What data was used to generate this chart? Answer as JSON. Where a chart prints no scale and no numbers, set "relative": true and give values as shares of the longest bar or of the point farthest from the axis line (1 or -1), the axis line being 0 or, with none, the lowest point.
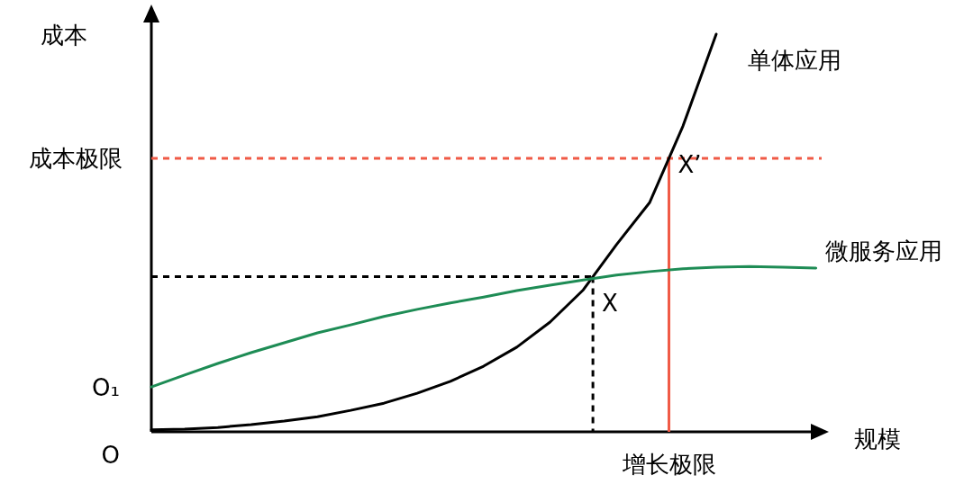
{
  "chart_data": {
    "type": "line",
    "relative": true,
    "xlabel": "规模",
    "ylabel": "成本",
    "legend": false,
    "categories": [
      null,
      null,
      null,
      null,
      null,
      null,
      null,
      null,
      null,
      null,
      null,
      null,
      null,
      null,
      null,
      null,
      null,
      null,
      null,
      null,
      null
    ],
    "series": [
      {
        "name": "单体应用",
        "color": "#000000",
        "values": [
          0.005,
          0.007,
          0.011,
          0.018,
          0.027,
          0.038,
          0.054,
          0.072,
          0.097,
          0.127,
          0.165,
          0.213,
          0.276,
          0.357,
          0.471,
          0.577,
          0.769,
          1.0,
          null,
          null,
          null
        ]
      },
      {
        "name": "微服务应用",
        "color": "#1e8c55",
        "values": [
          0.113,
          0.143,
          0.172,
          0.199,
          0.224,
          0.249,
          0.269,
          0.29,
          0.308,
          0.324,
          0.339,
          0.355,
          0.369,
          0.382,
          0.394,
          0.403,
          0.41,
          0.414,
          0.416,
          0.414,
          0.412
        ]
      }
    ],
    "ref_lines": [
      {
        "axis": "y",
        "value": 0.688,
        "label": "成本极限",
        "color": "#f05a46",
        "line_style": "dashed"
      },
      {
        "axis": "y",
        "value": 0.39,
        "label": null,
        "color": "#000000",
        "line_style": "dashed"
      }
    ],
    "annotations": [
      {
        "text": "X",
        "y": 0.39
      },
      {
        "text": "X’",
        "y": 0.688
      },
      "O₁",
      "O",
      "增长极限"
    ]
  }
}
